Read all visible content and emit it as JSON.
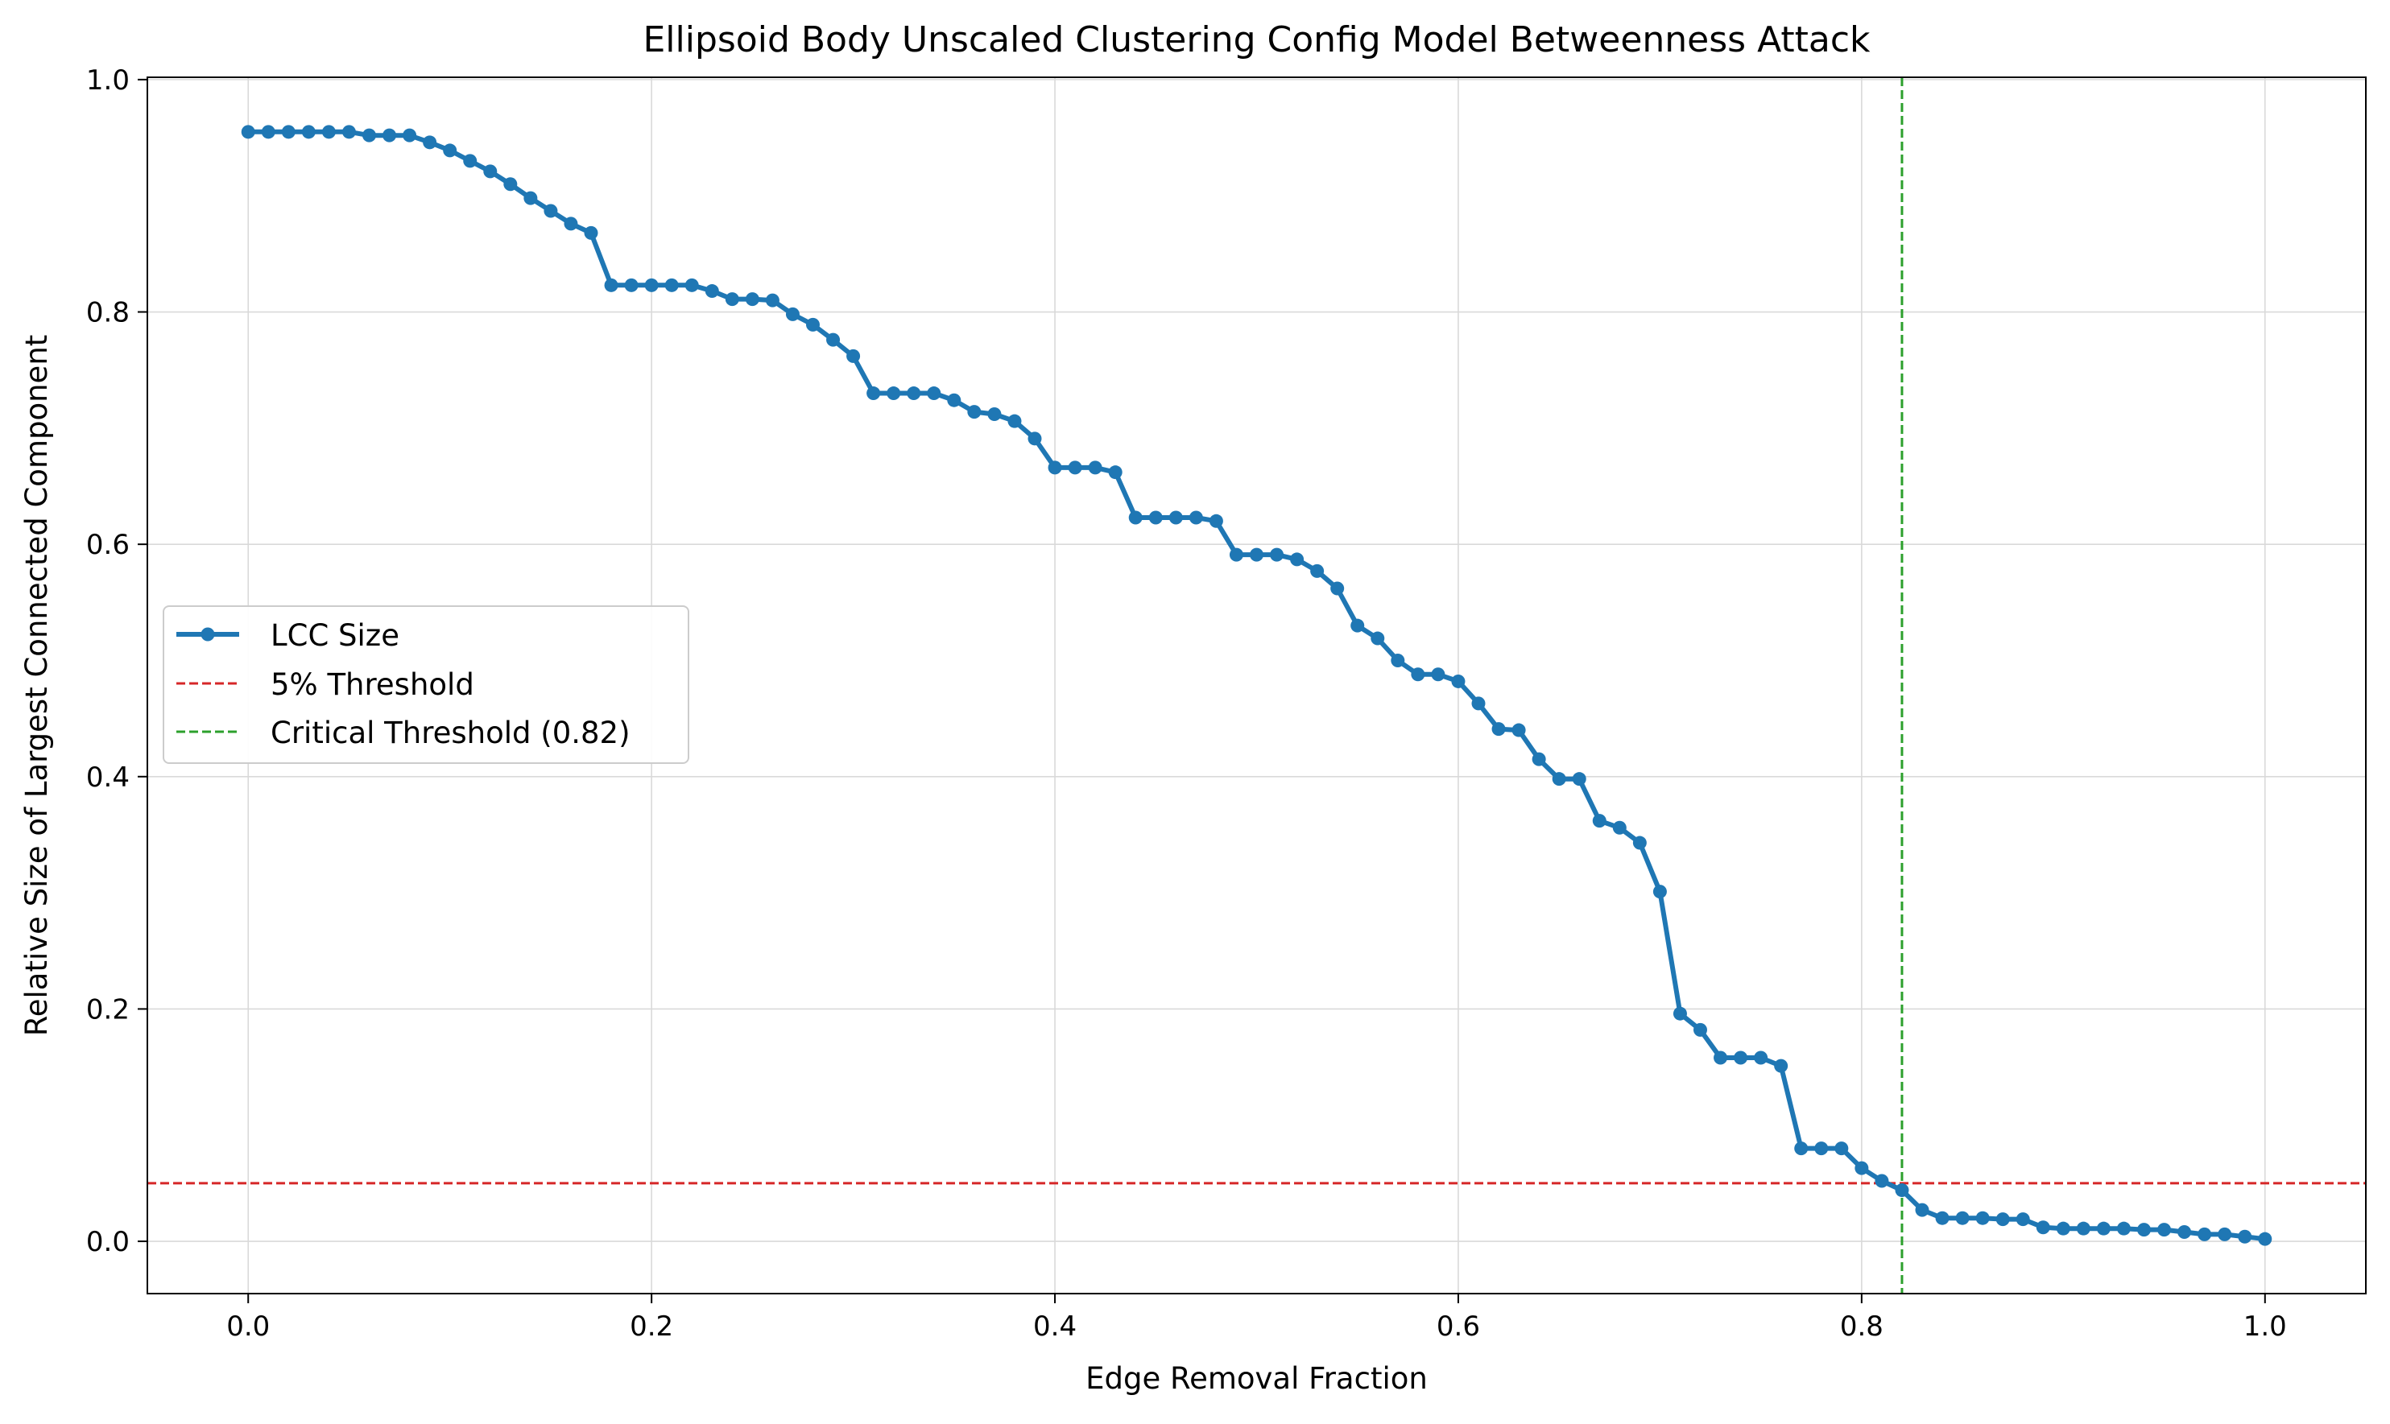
{
  "chart_data": {
    "type": "line",
    "title": "Ellipsoid Body Unscaled Clustering Config Model Betweenness Attack",
    "xlabel": "Edge Removal Fraction",
    "ylabel": "Relative Size of Largest Connected Component",
    "xlim": [
      -0.05,
      1.05
    ],
    "ylim": [
      -0.045,
      1.002
    ],
    "xticks": [
      0.0,
      0.2,
      0.4,
      0.6,
      0.8,
      1.0
    ],
    "xtick_labels": [
      "0.0",
      "0.2",
      "0.4",
      "0.6",
      "0.8",
      "1.0"
    ],
    "yticks": [
      0.0,
      0.2,
      0.4,
      0.6,
      0.8,
      1.0
    ],
    "ytick_labels": [
      "0.0",
      "0.2",
      "0.4",
      "0.6",
      "0.8",
      "1.0"
    ],
    "grid": true,
    "legend_position": "center-left",
    "series": [
      {
        "name": "LCC Size",
        "color": "#1f77b4",
        "marker": "circle",
        "x": [
          0.0,
          0.01,
          0.02,
          0.03,
          0.04,
          0.05,
          0.06,
          0.07,
          0.08,
          0.09,
          0.1,
          0.11,
          0.12,
          0.13,
          0.14,
          0.15,
          0.16,
          0.17,
          0.18,
          0.19,
          0.2,
          0.21,
          0.22,
          0.23,
          0.24,
          0.25,
          0.26,
          0.27,
          0.28,
          0.29,
          0.3,
          0.31,
          0.32,
          0.33,
          0.34,
          0.35,
          0.36,
          0.37,
          0.38,
          0.39,
          0.4,
          0.41,
          0.42,
          0.43,
          0.44,
          0.45,
          0.46,
          0.47,
          0.48,
          0.49,
          0.5,
          0.51,
          0.52,
          0.53,
          0.54,
          0.55,
          0.56,
          0.57,
          0.58,
          0.59,
          0.6,
          0.61,
          0.62,
          0.63,
          0.64,
          0.65,
          0.66,
          0.67,
          0.68,
          0.69,
          0.7,
          0.71,
          0.72,
          0.73,
          0.74,
          0.75,
          0.76,
          0.77,
          0.78,
          0.79,
          0.8,
          0.81,
          0.82,
          0.83,
          0.84,
          0.85,
          0.86,
          0.87,
          0.88,
          0.89,
          0.9,
          0.91,
          0.92,
          0.93,
          0.94,
          0.95,
          0.96,
          0.97,
          0.98,
          0.99,
          1.0
        ],
        "values": [
          0.955,
          0.955,
          0.955,
          0.955,
          0.955,
          0.955,
          0.952,
          0.952,
          0.952,
          0.946,
          0.939,
          0.93,
          0.921,
          0.91,
          0.898,
          0.887,
          0.876,
          0.868,
          0.823,
          0.823,
          0.823,
          0.823,
          0.823,
          0.818,
          0.811,
          0.811,
          0.81,
          0.798,
          0.789,
          0.776,
          0.762,
          0.73,
          0.73,
          0.73,
          0.73,
          0.724,
          0.714,
          0.712,
          0.706,
          0.691,
          0.666,
          0.666,
          0.666,
          0.662,
          0.623,
          0.623,
          0.623,
          0.623,
          0.62,
          0.591,
          0.591,
          0.591,
          0.587,
          0.577,
          0.562,
          0.53,
          0.519,
          0.5,
          0.488,
          0.488,
          0.482,
          0.463,
          0.441,
          0.44,
          0.415,
          0.398,
          0.398,
          0.362,
          0.356,
          0.343,
          0.301,
          0.196,
          0.182,
          0.158,
          0.158,
          0.158,
          0.151,
          0.08,
          0.08,
          0.08,
          0.063,
          0.052,
          0.044,
          0.027,
          0.02,
          0.02,
          0.02,
          0.019,
          0.019,
          0.012,
          0.011,
          0.011,
          0.011,
          0.011,
          0.01,
          0.01,
          0.008,
          0.006,
          0.006,
          0.004,
          0.002
        ]
      },
      {
        "name": "5% Threshold",
        "color": "#d62728",
        "style": "dashed",
        "orientation": "horizontal",
        "value": 0.05
      },
      {
        "name": "Critical Threshold (0.82)",
        "color": "#2ca02c",
        "style": "dashed",
        "orientation": "vertical",
        "value": 0.82
      }
    ]
  }
}
